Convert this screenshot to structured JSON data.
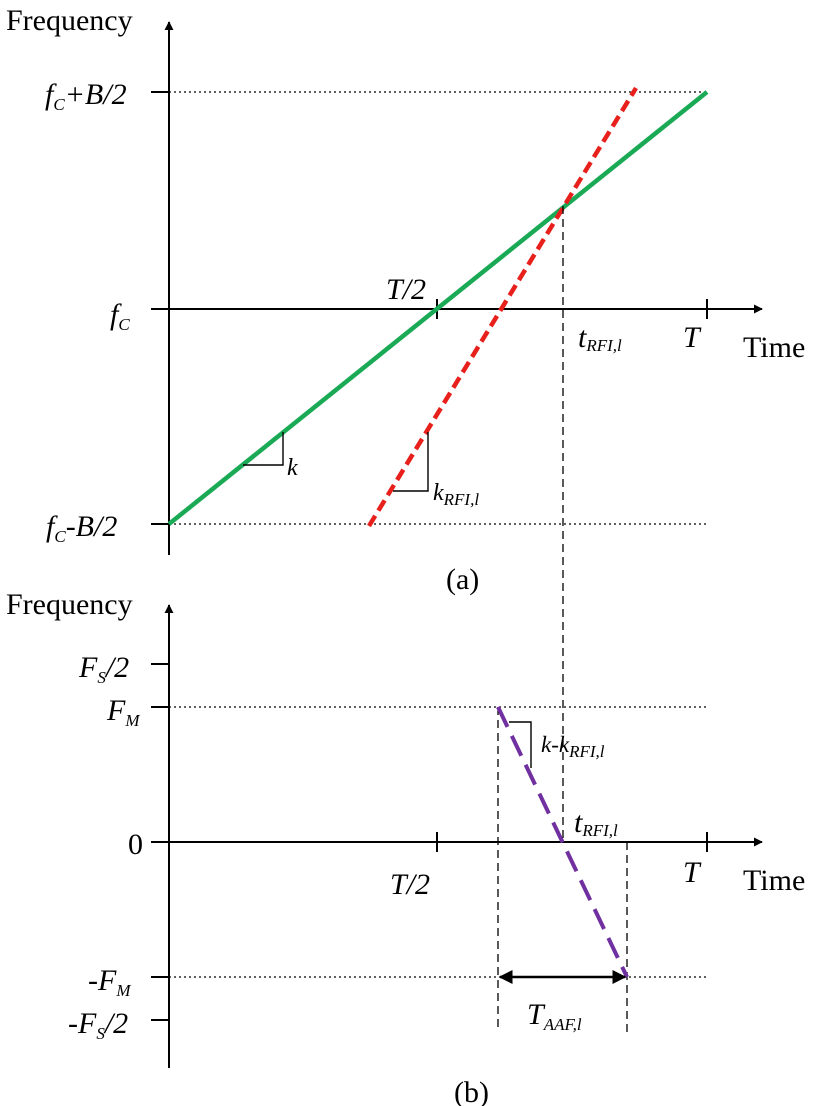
{
  "panel_a": {
    "caption": "(a)",
    "y_axis_label": "Frequency",
    "x_axis_label": "Time",
    "y_ticks": {
      "top": {
        "main": "f",
        "sub": "C",
        "rest": "+B/2"
      },
      "mid": {
        "main": "f",
        "sub": "C"
      },
      "bottom": {
        "main": "f",
        "sub": "C",
        "rest": "-B/2"
      }
    },
    "x_ticks": {
      "half": "T/2",
      "full": "T"
    },
    "crossing_label": {
      "main": "t",
      "sub": "RFI,l"
    },
    "slope_labels": {
      "chirp": "k",
      "rfi": {
        "main": "k",
        "sub": "RFI,l"
      }
    },
    "colors": {
      "chirp": "#1aaa55",
      "rfi": "#e8201c"
    }
  },
  "panel_b": {
    "caption": "(b)",
    "y_axis_label": "Frequency",
    "x_axis_label": "Time",
    "y_ticks": {
      "fs_half": {
        "main": "F",
        "sub": "S",
        "rest": "/2"
      },
      "fm": {
        "main": "F",
        "sub": "M"
      },
      "zero": "0",
      "neg_fm": {
        "pre": "-F",
        "sub": "M"
      },
      "neg_fs_half": {
        "pre": "-F",
        "sub": "S",
        "rest": "/2"
      }
    },
    "x_ticks": {
      "half": "T/2",
      "full": "T"
    },
    "crossing_label": {
      "main": "t",
      "sub": "RFI,l"
    },
    "slope_label": {
      "pre": "k-k",
      "sub": "RFI,l"
    },
    "duration_label": {
      "main": "T",
      "sub": "AAF,l"
    },
    "colors": {
      "beat": "#7030a0"
    }
  }
}
